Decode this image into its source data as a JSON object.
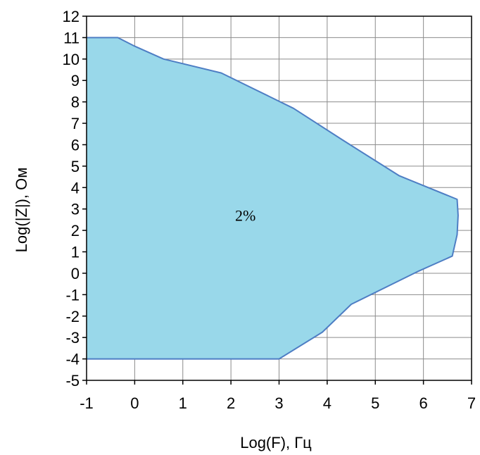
{
  "chart_data": {
    "type": "area",
    "xlabel": "Log(F), Гц",
    "ylabel": "Log(|Z|), Ом",
    "xlim": [
      -1,
      7
    ],
    "ylim": [
      -5,
      12
    ],
    "grid": true,
    "legend": "none",
    "fill_color": "#99d8ea",
    "line_color": "#4e7ec4",
    "annotations": [
      {
        "text": "2%",
        "x": 2.3,
        "y": 2.45
      }
    ],
    "series": [
      {
        "x": [
          -1,
          -0.35,
          0,
          0.6,
          1.8,
          3.3,
          4.3,
          5.5,
          6.7,
          6.72,
          6.7,
          6.6,
          5.9,
          4.5,
          3.9,
          3.0,
          -1
        ],
        "y": [
          11,
          11,
          10.6,
          10,
          9.35,
          7.7,
          6.25,
          4.55,
          3.45,
          2.7,
          1.8,
          0.8,
          0.1,
          -1.45,
          -2.75,
          -4,
          -4
        ]
      }
    ],
    "xticks": [
      "-1",
      "0",
      "1",
      "2",
      "3",
      "4",
      "5",
      "6",
      "7"
    ],
    "yticks": [
      "12",
      "11",
      "10",
      "9",
      "8",
      "7",
      "6",
      "5",
      "4",
      "3",
      "2",
      "1",
      "0",
      "-1",
      "-2",
      "-3",
      "-4",
      "-5"
    ]
  }
}
